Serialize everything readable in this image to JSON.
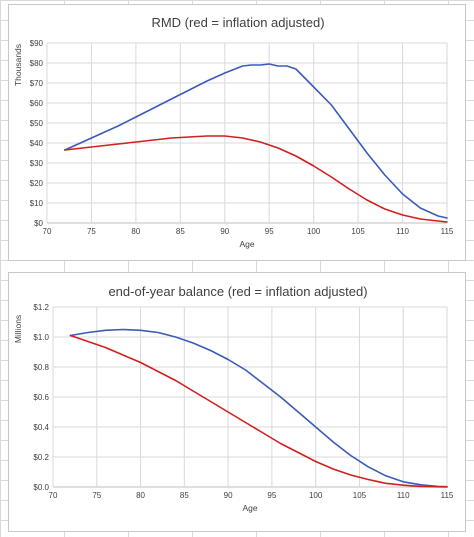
{
  "colors": {
    "blue": "#3a5bb8",
    "red": "#d21f1f",
    "grid": "#d9d9d9",
    "text": "#404040"
  },
  "chart_data": [
    {
      "type": "line",
      "title": "RMD (red = inflation adjusted)",
      "xlabel": "Age",
      "ylabel": "Thousands",
      "xlim": [
        70,
        115
      ],
      "ylim": [
        0,
        90
      ],
      "grid": true,
      "x_ticks": [
        70,
        75,
        80,
        85,
        90,
        95,
        100,
        105,
        110,
        115
      ],
      "y_ticks": [
        {
          "v": 0,
          "label": "$0"
        },
        {
          "v": 10,
          "label": "$10"
        },
        {
          "v": 20,
          "label": "$20"
        },
        {
          "v": 30,
          "label": "$30"
        },
        {
          "v": 40,
          "label": "$40"
        },
        {
          "v": 50,
          "label": "$50"
        },
        {
          "v": 60,
          "label": "$60"
        },
        {
          "v": 70,
          "label": "$70"
        },
        {
          "v": 80,
          "label": "$80"
        },
        {
          "v": 90,
          "label": "$90"
        }
      ],
      "series": [
        {
          "color": "#3a5bb8",
          "x": [
            72,
            74,
            76,
            78,
            80,
            82,
            84,
            86,
            88,
            90,
            92,
            93,
            94,
            95,
            96,
            97,
            98,
            100,
            102,
            104,
            106,
            108,
            110,
            112,
            114,
            115
          ],
          "y": [
            36.5,
            40.5,
            44.5,
            48.5,
            53,
            57.5,
            62,
            66.5,
            71,
            75,
            78.5,
            79,
            79,
            79.5,
            78.5,
            78.5,
            77,
            68,
            59,
            47,
            35,
            24,
            14.5,
            7.5,
            3.5,
            2.5
          ]
        },
        {
          "color": "#d21f1f",
          "x": [
            72,
            74,
            76,
            78,
            80,
            82,
            84,
            86,
            88,
            90,
            92,
            94,
            96,
            98,
            100,
            102,
            104,
            106,
            108,
            110,
            112,
            114,
            115
          ],
          "y": [
            36.5,
            37.5,
            38.5,
            39.5,
            40.5,
            41.5,
            42.5,
            43,
            43.5,
            43.5,
            42.5,
            40.5,
            37.5,
            33.5,
            28.5,
            23,
            17,
            11.5,
            7,
            4,
            2,
            1,
            0.5
          ]
        }
      ]
    },
    {
      "type": "line",
      "title": "end-of-year balance (red = inflation adjusted)",
      "xlabel": "Age",
      "ylabel": "Millions",
      "xlim": [
        70,
        115
      ],
      "ylim": [
        0,
        1.2
      ],
      "grid": true,
      "x_ticks": [
        70,
        75,
        80,
        85,
        90,
        95,
        100,
        105,
        110,
        115
      ],
      "y_ticks": [
        {
          "v": 0,
          "label": "$0.0"
        },
        {
          "v": 0.2,
          "label": "$0.2"
        },
        {
          "v": 0.4,
          "label": "$0.4"
        },
        {
          "v": 0.6,
          "label": "$0.6"
        },
        {
          "v": 0.8,
          "label": "$0.8"
        },
        {
          "v": 1.0,
          "label": "$1.0"
        },
        {
          "v": 1.2,
          "label": "$1.2"
        }
      ],
      "series": [
        {
          "color": "#3a5bb8",
          "x": [
            72,
            74,
            76,
            78,
            80,
            82,
            84,
            86,
            88,
            90,
            92,
            94,
            96,
            98,
            100,
            102,
            104,
            106,
            108,
            110,
            112,
            114,
            115
          ],
          "y": [
            1.01,
            1.03,
            1.045,
            1.05,
            1.045,
            1.03,
            1.0,
            0.96,
            0.91,
            0.85,
            0.78,
            0.69,
            0.6,
            0.5,
            0.4,
            0.3,
            0.21,
            0.135,
            0.075,
            0.035,
            0.015,
            0.004,
            0.002
          ]
        },
        {
          "color": "#d21f1f",
          "x": [
            72,
            74,
            76,
            78,
            80,
            82,
            84,
            86,
            88,
            90,
            92,
            94,
            96,
            98,
            100,
            102,
            104,
            106,
            108,
            110,
            112,
            114,
            115
          ],
          "y": [
            1.01,
            0.97,
            0.93,
            0.88,
            0.83,
            0.77,
            0.71,
            0.64,
            0.57,
            0.5,
            0.43,
            0.36,
            0.29,
            0.23,
            0.17,
            0.12,
            0.08,
            0.05,
            0.025,
            0.012,
            0.004,
            0.001,
            0.0
          ]
        }
      ]
    }
  ]
}
